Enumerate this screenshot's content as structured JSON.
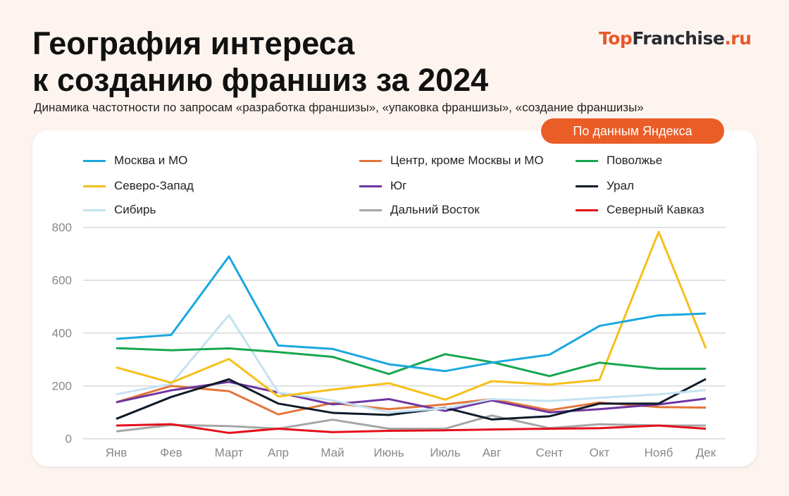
{
  "title_line1": "География интереса",
  "title_line2": "к созданию франшиз за 2024",
  "subtitle": "Динамика частотности по запросам «разработка франшизы», «упаковка франшизы», «создание франшизы»",
  "logo": {
    "part1": "Top",
    "part2": "Franchise",
    "part3": ".ru"
  },
  "badge": "По данным Яндекса",
  "chart_data": {
    "type": "line",
    "categories": [
      "Янв",
      "Фев",
      "Март",
      "Апр",
      "Май",
      "Июнь",
      "Июль",
      "Авг",
      "Сент",
      "Окт",
      "Нояб",
      "Дек"
    ],
    "ylim": [
      0,
      800
    ],
    "yticks": [
      0,
      200,
      400,
      600,
      800
    ],
    "grid": true,
    "legend_position": "top",
    "series": [
      {
        "name": "Москва и МО",
        "color": "#1aa7df",
        "values": [
          378,
          393,
          690,
          353,
          340,
          282,
          256,
          288,
          318,
          427,
          467,
          474
        ]
      },
      {
        "name": "Северо-Запад",
        "color": "#f6bf1b",
        "values": [
          270,
          212,
          302,
          160,
          186,
          210,
          148,
          218,
          205,
          223,
          783,
          342
        ]
      },
      {
        "name": "Сибирь",
        "color": "#c4e2f1",
        "values": [
          168,
          208,
          468,
          175,
          145,
          100,
          115,
          150,
          143,
          155,
          168,
          184
        ]
      },
      {
        "name": "Центр, кроме Москвы и МО",
        "color": "#e4743a",
        "values": [
          138,
          200,
          180,
          92,
          135,
          112,
          130,
          150,
          108,
          137,
          120,
          118
        ]
      },
      {
        "name": "Юг",
        "color": "#6f35a0",
        "values": [
          138,
          183,
          215,
          175,
          130,
          150,
          105,
          145,
          100,
          112,
          130,
          152
        ]
      },
      {
        "name": "Дальний Восток",
        "color": "#a6a6a6",
        "values": [
          28,
          52,
          48,
          38,
          72,
          38,
          38,
          88,
          40,
          55,
          50,
          50
        ]
      },
      {
        "name": "Поволжье",
        "color": "#16a64f",
        "values": [
          343,
          335,
          342,
          328,
          310,
          245,
          320,
          290,
          237,
          288,
          265,
          265
        ]
      },
      {
        "name": "Урал",
        "color": "#0d1b2a",
        "values": [
          75,
          158,
          225,
          133,
          98,
          90,
          117,
          73,
          85,
          133,
          133,
          226
        ]
      },
      {
        "name": "Северный Кавказ",
        "color": "#e3101a",
        "values": [
          50,
          55,
          22,
          38,
          25,
          30,
          32,
          35,
          38,
          40,
          50,
          38
        ]
      }
    ]
  }
}
